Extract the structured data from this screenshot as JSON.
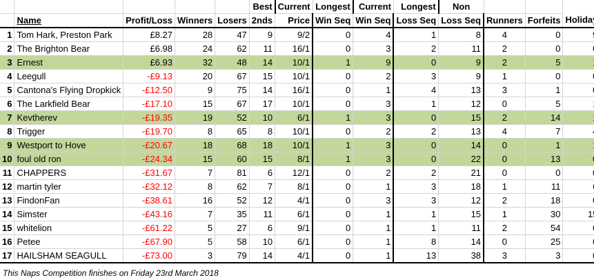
{
  "headers": {
    "top": {
      "best": "Best",
      "current_win": "Current",
      "longest_win": "Longest",
      "current_loss": "Current",
      "longest_loss": "Longest",
      "non": "Non"
    },
    "bottom": {
      "name": "Name",
      "profit": "Profit/Loss",
      "winners": "Winners",
      "losers": "Losers",
      "seconds": "2nds",
      "price": "Price",
      "win_seq": "Win Seq",
      "win_seq2": "Win Seq",
      "loss_seq": "Loss Seq",
      "loss_seq2": "Loss Seq",
      "runners": "Runners",
      "forfeits": "Forfeits",
      "holiday": "Holiday"
    }
  },
  "rows": [
    {
      "pos": "1",
      "name": "Tom Hark, Preston Park",
      "profit": "£8.27",
      "winners": "28",
      "losers": "47",
      "seconds": "9",
      "price": "9/2",
      "cws": "0",
      "lws": "4",
      "cls": "1",
      "lls": "8",
      "nr": "4",
      "forfeits": "0",
      "holiday": "9",
      "highlight": false,
      "negative": false
    },
    {
      "pos": "2",
      "name": "The Brighton Bear",
      "profit": "£6.98",
      "winners": "24",
      "losers": "62",
      "seconds": "11",
      "price": "16/1",
      "cws": "0",
      "lws": "3",
      "cls": "2",
      "lls": "11",
      "nr": "2",
      "forfeits": "0",
      "holiday": "0",
      "highlight": false,
      "negative": false
    },
    {
      "pos": "3",
      "name": "Ernest",
      "profit": "£6.93",
      "winners": "32",
      "losers": "48",
      "seconds": "14",
      "price": "10/1",
      "cws": "1",
      "lws": "9",
      "cls": "0",
      "lls": "9",
      "nr": "2",
      "forfeits": "5",
      "holiday": "1",
      "highlight": true,
      "negative": false
    },
    {
      "pos": "4",
      "name": "Leegull",
      "profit": "-£9.13",
      "winners": "20",
      "losers": "67",
      "seconds": "15",
      "price": "10/1",
      "cws": "0",
      "lws": "2",
      "cls": "3",
      "lls": "9",
      "nr": "1",
      "forfeits": "0",
      "holiday": "0",
      "highlight": false,
      "negative": true
    },
    {
      "pos": "5",
      "name": "Cantona's Flying Dropkick",
      "profit": "-£12.50",
      "winners": "9",
      "losers": "75",
      "seconds": "14",
      "price": "16/1",
      "cws": "0",
      "lws": "1",
      "cls": "4",
      "lls": "13",
      "nr": "3",
      "forfeits": "1",
      "holiday": "0",
      "highlight": false,
      "negative": true
    },
    {
      "pos": "6",
      "name": "The Larkfield Bear",
      "profit": "-£17.10",
      "winners": "15",
      "losers": "67",
      "seconds": "17",
      "price": "10/1",
      "cws": "0",
      "lws": "3",
      "cls": "1",
      "lls": "12",
      "nr": "0",
      "forfeits": "5",
      "holiday": "1",
      "highlight": false,
      "negative": true
    },
    {
      "pos": "7",
      "name": "Kevtherev",
      "profit": "-£19.35",
      "winners": "19",
      "losers": "52",
      "seconds": "10",
      "price": "6/1",
      "cws": "1",
      "lws": "3",
      "cls": "0",
      "lls": "15",
      "nr": "2",
      "forfeits": "14",
      "holiday": "1",
      "highlight": true,
      "negative": true
    },
    {
      "pos": "8",
      "name": "Trigger",
      "profit": "-£19.70",
      "winners": "8",
      "losers": "65",
      "seconds": "8",
      "price": "10/1",
      "cws": "0",
      "lws": "2",
      "cls": "2",
      "lls": "13",
      "nr": "4",
      "forfeits": "7",
      "holiday": "4",
      "highlight": false,
      "negative": true
    },
    {
      "pos": "9",
      "name": "Westport to Hove",
      "profit": "-£20.67",
      "winners": "18",
      "losers": "68",
      "seconds": "18",
      "price": "10/1",
      "cws": "1",
      "lws": "3",
      "cls": "0",
      "lls": "14",
      "nr": "0",
      "forfeits": "1",
      "holiday": "1",
      "highlight": true,
      "negative": true
    },
    {
      "pos": "10",
      "name": "foul old ron",
      "profit": "-£24.34",
      "winners": "15",
      "losers": "60",
      "seconds": "15",
      "price": "8/1",
      "cws": "1",
      "lws": "3",
      "cls": "0",
      "lls": "22",
      "nr": "0",
      "forfeits": "13",
      "holiday": "0",
      "highlight": true,
      "negative": true
    },
    {
      "pos": "11",
      "name": "CHAPPERS",
      "profit": "-£31.67",
      "winners": "7",
      "losers": "81",
      "seconds": "6",
      "price": "12/1",
      "cws": "0",
      "lws": "2",
      "cls": "2",
      "lls": "21",
      "nr": "0",
      "forfeits": "0",
      "holiday": "0",
      "highlight": false,
      "negative": true
    },
    {
      "pos": "12",
      "name": "martin tyler",
      "profit": "-£32.12",
      "winners": "8",
      "losers": "62",
      "seconds": "7",
      "price": "8/1",
      "cws": "0",
      "lws": "1",
      "cls": "3",
      "lls": "18",
      "nr": "1",
      "forfeits": "11",
      "holiday": "6",
      "highlight": false,
      "negative": true
    },
    {
      "pos": "13",
      "name": "FindonFan",
      "profit": "-£38.61",
      "winners": "16",
      "losers": "52",
      "seconds": "12",
      "price": "4/1",
      "cws": "0",
      "lws": "3",
      "cls": "3",
      "lls": "12",
      "nr": "2",
      "forfeits": "18",
      "holiday": "0",
      "highlight": false,
      "negative": true
    },
    {
      "pos": "14",
      "name": "Simster",
      "profit": "-£43.16",
      "winners": "7",
      "losers": "35",
      "seconds": "11",
      "price": "6/1",
      "cws": "0",
      "lws": "1",
      "cls": "1",
      "lls": "15",
      "nr": "1",
      "forfeits": "30",
      "holiday": "15",
      "highlight": false,
      "negative": true
    },
    {
      "pos": "15",
      "name": "whitelion",
      "profit": "-£61.22",
      "winners": "5",
      "losers": "27",
      "seconds": "6",
      "price": "9/1",
      "cws": "0",
      "lws": "1",
      "cls": "1",
      "lls": "11",
      "nr": "2",
      "forfeits": "54",
      "holiday": "0",
      "highlight": false,
      "negative": true
    },
    {
      "pos": "16",
      "name": "Petee",
      "profit": "-£67.90",
      "winners": "5",
      "losers": "58",
      "seconds": "10",
      "price": "6/1",
      "cws": "0",
      "lws": "1",
      "cls": "8",
      "lls": "14",
      "nr": "0",
      "forfeits": "25",
      "holiday": "0",
      "highlight": false,
      "negative": true
    },
    {
      "pos": "17",
      "name": "HAILSHAM SEAGULL",
      "profit": "-£73.00",
      "winners": "3",
      "losers": "79",
      "seconds": "14",
      "price": "4/1",
      "cws": "0",
      "lws": "1",
      "cls": "13",
      "lls": "38",
      "nr": "3",
      "forfeits": "3",
      "holiday": "0",
      "highlight": false,
      "negative": true
    }
  ],
  "footer": "This Naps Competition finishes on Friday 23rd March 2018"
}
